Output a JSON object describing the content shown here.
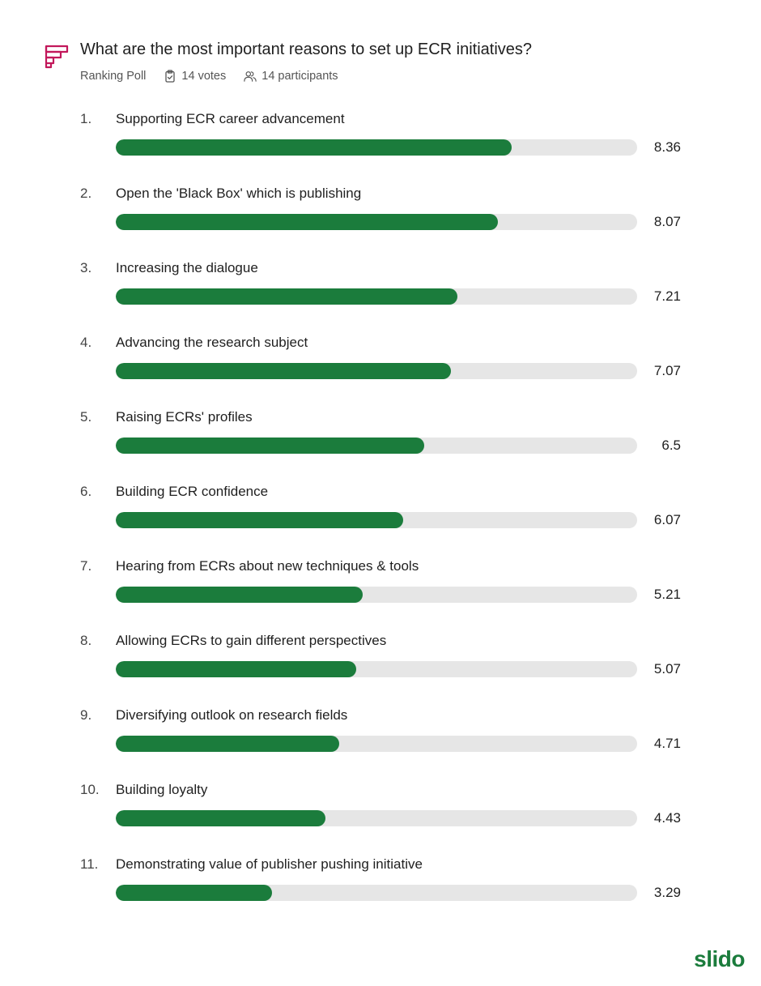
{
  "poll": {
    "question": "What are the most important reasons to set up ECR initiatives?",
    "type_label": "Ranking Poll",
    "votes_label": "14 votes",
    "participants_label": "14 participants",
    "accent_color": "#c2185b",
    "bar_color": "#1b7c3c",
    "track_color": "#e6e6e6"
  },
  "chart_data": {
    "type": "bar",
    "orientation": "horizontal",
    "title": "What are the most important reasons to set up ECR initiatives?",
    "xlim": [
      0,
      11
    ],
    "items": [
      {
        "rank": "1.",
        "label": "Supporting ECR career advancement",
        "value": 8.36,
        "value_label": "8.36"
      },
      {
        "rank": "2.",
        "label": "Open the 'Black Box' which is publishing",
        "value": 8.07,
        "value_label": "8.07"
      },
      {
        "rank": "3.",
        "label": "Increasing the dialogue",
        "value": 7.21,
        "value_label": "7.21"
      },
      {
        "rank": "4.",
        "label": "Advancing the research subject",
        "value": 7.07,
        "value_label": "7.07"
      },
      {
        "rank": "5.",
        "label": "Raising ECRs' profiles",
        "value": 6.5,
        "value_label": "6.5"
      },
      {
        "rank": "6.",
        "label": "Building ECR confidence",
        "value": 6.07,
        "value_label": "6.07"
      },
      {
        "rank": "7.",
        "label": "Hearing from ECRs about new techniques & tools",
        "value": 5.21,
        "value_label": "5.21"
      },
      {
        "rank": "8.",
        "label": "Allowing ECRs to gain different perspectives",
        "value": 5.07,
        "value_label": "5.07"
      },
      {
        "rank": "9.",
        "label": "Diversifying outlook on research fields",
        "value": 4.71,
        "value_label": "4.71"
      },
      {
        "rank": "10.",
        "label": "Building loyalty",
        "value": 4.43,
        "value_label": "4.43"
      },
      {
        "rank": "11.",
        "label": "Demonstrating value of publisher pushing initiative",
        "value": 3.29,
        "value_label": "3.29"
      }
    ]
  },
  "brand": {
    "name": "slido"
  },
  "icons": {
    "poll_type": "ranking-poll-icon",
    "votes": "clipboard-check-icon",
    "participants": "people-icon"
  }
}
